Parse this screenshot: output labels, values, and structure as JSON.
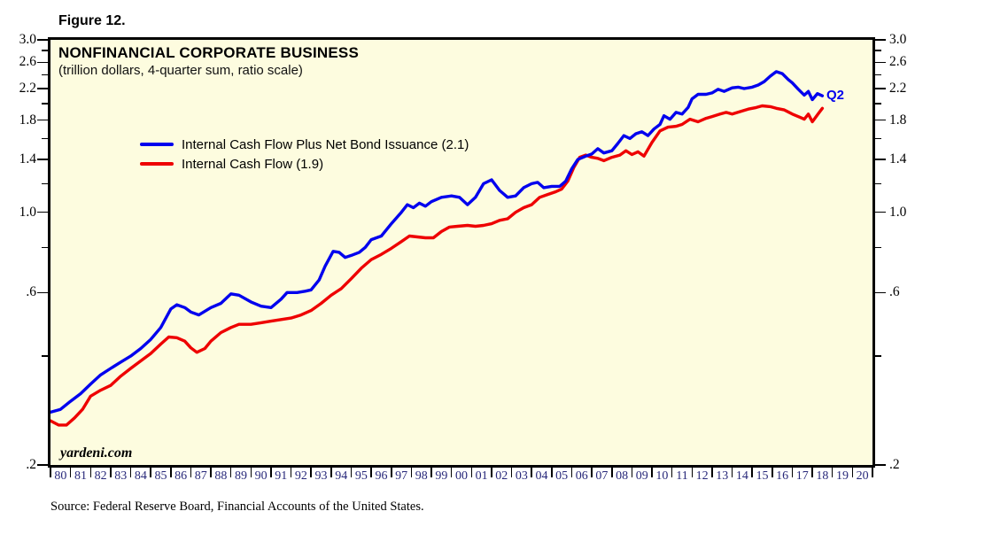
{
  "figure_label": "Figure 12.",
  "chart": {
    "title": "NONFINANCIAL CORPORATE BUSINESS",
    "subtitle": "(trillion dollars, 4-quarter sum, ratio scale)",
    "watermark": "yardeni.com",
    "end_label": "Q2",
    "background": "#FDFCDF",
    "border_color": "#000000",
    "x_label_color": "#28287A"
  },
  "legend": [
    {
      "label": "Internal Cash Flow Plus Net Bond Issuance (2.1)",
      "color": "#0000EE"
    },
    {
      "label": "Internal Cash Flow (1.9)",
      "color": "#EE0000"
    }
  ],
  "source": "Source: Federal Reserve Board, Financial Accounts of the United States.",
  "chart_data": {
    "type": "line",
    "scale": "log",
    "title": "NONFINANCIAL CORPORATE BUSINESS",
    "subtitle": "(trillion dollars, 4-quarter sum, ratio scale)",
    "x_range": [
      1980,
      2021
    ],
    "y_range": [
      0.2,
      3.0
    ],
    "y_major_values": [
      3.0,
      2.6,
      2.2,
      1.8,
      1.4,
      1.0,
      0.6,
      0.2
    ],
    "y_major_ticks": [
      "3.0",
      "2.6",
      "2.2",
      "1.8",
      "1.4",
      "1.0",
      ".6",
      ".2"
    ],
    "y_minor_values": [
      2.8,
      2.4,
      2.0,
      1.6,
      1.2,
      0.8,
      0.4
    ],
    "x_tick_labels": [
      "80",
      "81",
      "82",
      "83",
      "84",
      "85",
      "86",
      "87",
      "88",
      "89",
      "90",
      "91",
      "92",
      "93",
      "94",
      "95",
      "96",
      "97",
      "98",
      "99",
      "00",
      "01",
      "02",
      "03",
      "04",
      "05",
      "06",
      "07",
      "08",
      "09",
      "10",
      "11",
      "12",
      "13",
      "14",
      "15",
      "16",
      "17",
      "18",
      "19",
      "20"
    ],
    "grid": false,
    "legend_position": "upper-left-inside",
    "series": [
      {
        "name": "Internal Cash Flow Plus Net Bond Issuance",
        "latest_value": 2.1,
        "latest_quarter": "Q2",
        "color": "#0000EE",
        "points": [
          [
            1980,
            0.28
          ],
          [
            1980.5,
            0.285
          ],
          [
            1981,
            0.3
          ],
          [
            1981.5,
            0.315
          ],
          [
            1982,
            0.335
          ],
          [
            1982.5,
            0.355
          ],
          [
            1983,
            0.37
          ],
          [
            1983.5,
            0.385
          ],
          [
            1984,
            0.4
          ],
          [
            1984.5,
            0.42
          ],
          [
            1985,
            0.445
          ],
          [
            1985.5,
            0.48
          ],
          [
            1986,
            0.54
          ],
          [
            1986.3,
            0.555
          ],
          [
            1986.7,
            0.545
          ],
          [
            1987,
            0.53
          ],
          [
            1987.4,
            0.52
          ],
          [
            1988,
            0.545
          ],
          [
            1988.5,
            0.56
          ],
          [
            1989,
            0.595
          ],
          [
            1989.4,
            0.59
          ],
          [
            1990,
            0.565
          ],
          [
            1990.5,
            0.55
          ],
          [
            1991,
            0.545
          ],
          [
            1991.5,
            0.575
          ],
          [
            1991.8,
            0.6
          ],
          [
            1992.3,
            0.6
          ],
          [
            1992.7,
            0.605
          ],
          [
            1993,
            0.61
          ],
          [
            1993.4,
            0.65
          ],
          [
            1993.7,
            0.71
          ],
          [
            1994.1,
            0.78
          ],
          [
            1994.4,
            0.775
          ],
          [
            1994.7,
            0.75
          ],
          [
            1995,
            0.76
          ],
          [
            1995.4,
            0.775
          ],
          [
            1995.7,
            0.8
          ],
          [
            1996,
            0.84
          ],
          [
            1996.5,
            0.86
          ],
          [
            1997,
            0.93
          ],
          [
            1997.5,
            1.0
          ],
          [
            1997.8,
            1.05
          ],
          [
            1998.1,
            1.03
          ],
          [
            1998.4,
            1.06
          ],
          [
            1998.7,
            1.04
          ],
          [
            1999,
            1.07
          ],
          [
            1999.5,
            1.1
          ],
          [
            2000,
            1.11
          ],
          [
            2000.4,
            1.1
          ],
          [
            2000.8,
            1.05
          ],
          [
            2001.2,
            1.1
          ],
          [
            2001.6,
            1.2
          ],
          [
            2002,
            1.23
          ],
          [
            2002.4,
            1.15
          ],
          [
            2002.8,
            1.1
          ],
          [
            2003.2,
            1.11
          ],
          [
            2003.6,
            1.17
          ],
          [
            2004,
            1.2
          ],
          [
            2004.3,
            1.21
          ],
          [
            2004.6,
            1.17
          ],
          [
            2005,
            1.18
          ],
          [
            2005.4,
            1.18
          ],
          [
            2005.7,
            1.22
          ],
          [
            2006,
            1.32
          ],
          [
            2006.3,
            1.4
          ],
          [
            2006.7,
            1.43
          ],
          [
            2007,
            1.45
          ],
          [
            2007.3,
            1.5
          ],
          [
            2007.6,
            1.46
          ],
          [
            2008,
            1.48
          ],
          [
            2008.3,
            1.55
          ],
          [
            2008.6,
            1.63
          ],
          [
            2008.9,
            1.6
          ],
          [
            2009.2,
            1.65
          ],
          [
            2009.5,
            1.67
          ],
          [
            2009.8,
            1.63
          ],
          [
            2010.1,
            1.7
          ],
          [
            2010.4,
            1.75
          ],
          [
            2010.6,
            1.85
          ],
          [
            2010.9,
            1.81
          ],
          [
            2011.2,
            1.89
          ],
          [
            2011.5,
            1.87
          ],
          [
            2011.8,
            1.95
          ],
          [
            2012,
            2.06
          ],
          [
            2012.3,
            2.12
          ],
          [
            2012.7,
            2.12
          ],
          [
            2013,
            2.14
          ],
          [
            2013.3,
            2.19
          ],
          [
            2013.6,
            2.16
          ],
          [
            2014,
            2.21
          ],
          [
            2014.3,
            2.22
          ],
          [
            2014.6,
            2.2
          ],
          [
            2015,
            2.22
          ],
          [
            2015.3,
            2.25
          ],
          [
            2015.6,
            2.3
          ],
          [
            2015.9,
            2.38
          ],
          [
            2016.2,
            2.45
          ],
          [
            2016.5,
            2.42
          ],
          [
            2016.8,
            2.33
          ],
          [
            2017,
            2.28
          ],
          [
            2017.3,
            2.19
          ],
          [
            2017.6,
            2.11
          ],
          [
            2017.8,
            2.16
          ],
          [
            2018,
            2.05
          ],
          [
            2018.25,
            2.13
          ],
          [
            2018.5,
            2.1
          ]
        ]
      },
      {
        "name": "Internal Cash Flow",
        "latest_value": 1.9,
        "latest_quarter": "Q2",
        "color": "#EE0000",
        "points": [
          [
            1980,
            0.265
          ],
          [
            1980.4,
            0.258
          ],
          [
            1980.8,
            0.258
          ],
          [
            1981.2,
            0.27
          ],
          [
            1981.6,
            0.285
          ],
          [
            1982,
            0.31
          ],
          [
            1982.5,
            0.322
          ],
          [
            1983,
            0.332
          ],
          [
            1983.5,
            0.352
          ],
          [
            1984,
            0.37
          ],
          [
            1984.5,
            0.388
          ],
          [
            1985,
            0.407
          ],
          [
            1985.5,
            0.432
          ],
          [
            1985.9,
            0.452
          ],
          [
            1986.3,
            0.45
          ],
          [
            1986.7,
            0.44
          ],
          [
            1987,
            0.422
          ],
          [
            1987.3,
            0.41
          ],
          [
            1987.7,
            0.42
          ],
          [
            1988,
            0.44
          ],
          [
            1988.5,
            0.465
          ],
          [
            1989,
            0.48
          ],
          [
            1989.4,
            0.49
          ],
          [
            1990,
            0.49
          ],
          [
            1990.5,
            0.495
          ],
          [
            1991,
            0.5
          ],
          [
            1991.5,
            0.505
          ],
          [
            1992,
            0.51
          ],
          [
            1992.5,
            0.52
          ],
          [
            1993,
            0.535
          ],
          [
            1993.5,
            0.56
          ],
          [
            1994,
            0.59
          ],
          [
            1994.5,
            0.615
          ],
          [
            1995,
            0.655
          ],
          [
            1995.5,
            0.7
          ],
          [
            1996,
            0.74
          ],
          [
            1996.5,
            0.765
          ],
          [
            1997,
            0.795
          ],
          [
            1997.5,
            0.83
          ],
          [
            1997.9,
            0.86
          ],
          [
            1998.3,
            0.855
          ],
          [
            1998.7,
            0.85
          ],
          [
            1999.1,
            0.85
          ],
          [
            1999.5,
            0.885
          ],
          [
            1999.9,
            0.91
          ],
          [
            2000.3,
            0.915
          ],
          [
            2000.8,
            0.92
          ],
          [
            2001.2,
            0.915
          ],
          [
            2001.6,
            0.92
          ],
          [
            2002,
            0.93
          ],
          [
            2002.4,
            0.95
          ],
          [
            2002.8,
            0.96
          ],
          [
            2003.2,
            1.0
          ],
          [
            2003.6,
            1.03
          ],
          [
            2004,
            1.05
          ],
          [
            2004.4,
            1.1
          ],
          [
            2004.8,
            1.12
          ],
          [
            2005.2,
            1.14
          ],
          [
            2005.5,
            1.16
          ],
          [
            2005.8,
            1.22
          ],
          [
            2006.1,
            1.33
          ],
          [
            2006.4,
            1.42
          ],
          [
            2006.7,
            1.44
          ],
          [
            2007,
            1.42
          ],
          [
            2007.3,
            1.41
          ],
          [
            2007.6,
            1.39
          ],
          [
            2008,
            1.42
          ],
          [
            2008.4,
            1.44
          ],
          [
            2008.7,
            1.48
          ],
          [
            2009,
            1.445
          ],
          [
            2009.3,
            1.47
          ],
          [
            2009.6,
            1.43
          ],
          [
            2010,
            1.56
          ],
          [
            2010.4,
            1.68
          ],
          [
            2010.8,
            1.72
          ],
          [
            2011.2,
            1.73
          ],
          [
            2011.5,
            1.75
          ],
          [
            2011.9,
            1.81
          ],
          [
            2012.3,
            1.78
          ],
          [
            2012.7,
            1.82
          ],
          [
            2013,
            1.84
          ],
          [
            2013.4,
            1.87
          ],
          [
            2013.7,
            1.89
          ],
          [
            2014,
            1.87
          ],
          [
            2014.4,
            1.9
          ],
          [
            2014.8,
            1.93
          ],
          [
            2015.2,
            1.95
          ],
          [
            2015.5,
            1.97
          ],
          [
            2015.9,
            1.96
          ],
          [
            2016.2,
            1.94
          ],
          [
            2016.6,
            1.92
          ],
          [
            2017,
            1.87
          ],
          [
            2017.4,
            1.83
          ],
          [
            2017.6,
            1.81
          ],
          [
            2017.8,
            1.87
          ],
          [
            2018,
            1.78
          ],
          [
            2018.25,
            1.86
          ],
          [
            2018.5,
            1.94
          ]
        ]
      }
    ]
  }
}
